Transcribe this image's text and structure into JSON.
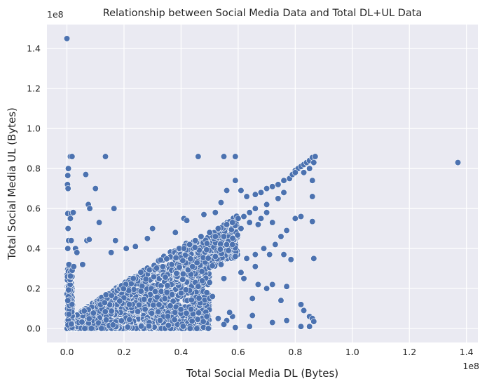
{
  "chart_data": {
    "type": "scatter",
    "title": "Relationship between Social Media Data and Total DL+UL Data",
    "xlabel": "Total Social Media DL (Bytes)",
    "ylabel": "Total Social Media UL (Bytes)",
    "x_offset_label": "1e8",
    "y_offset_label": "1e8",
    "xlim": [
      -0.07,
      1.44
    ],
    "ylim": [
      -0.07,
      1.52
    ],
    "x_ticks": [
      0.0,
      0.2,
      0.4,
      0.6,
      0.8,
      1.0,
      1.2,
      1.4
    ],
    "x_tick_labels": [
      "0.0",
      "0.2",
      "0.4",
      "0.6",
      "0.8",
      "1.0",
      "1.2",
      "1.4"
    ],
    "y_ticks": [
      0.0,
      0.2,
      0.4,
      0.6,
      0.8,
      1.0,
      1.2,
      1.4
    ],
    "y_tick_labels": [
      "0.0",
      "0.2",
      "0.4",
      "0.6",
      "0.8",
      "1.0",
      "1.2",
      "1.4"
    ],
    "grid": true,
    "colors": {
      "background": "#eaeaf2",
      "grid": "#ffffff",
      "point": "#4c72b0"
    },
    "series": [
      {
        "points": [
          [
            0.0,
            1.45
          ],
          [
            1.37,
            0.83
          ],
          [
            0.005,
            0.8
          ],
          [
            0.003,
            0.765
          ],
          [
            0.002,
            0.72
          ],
          [
            0.004,
            0.7
          ],
          [
            0.012,
            0.86
          ],
          [
            0.018,
            0.86
          ],
          [
            0.066,
            0.77
          ],
          [
            0.1,
            0.7
          ],
          [
            0.135,
            0.86
          ],
          [
            0.003,
            0.575
          ],
          [
            0.015,
            0.575
          ],
          [
            0.022,
            0.58
          ],
          [
            0.004,
            0.5
          ],
          [
            0.012,
            0.55
          ],
          [
            0.075,
            0.62
          ],
          [
            0.08,
            0.6
          ],
          [
            0.113,
            0.53
          ],
          [
            0.165,
            0.6
          ],
          [
            0.006,
            0.44
          ],
          [
            0.015,
            0.44
          ],
          [
            0.07,
            0.44
          ],
          [
            0.078,
            0.445
          ],
          [
            0.17,
            0.44
          ],
          [
            0.003,
            0.4
          ],
          [
            0.03,
            0.4
          ],
          [
            0.035,
            0.38
          ],
          [
            0.055,
            0.32
          ],
          [
            0.007,
            0.32
          ],
          [
            0.024,
            0.31
          ],
          [
            0.155,
            0.38
          ],
          [
            0.208,
            0.4
          ],
          [
            0.24,
            0.41
          ],
          [
            0.3,
            0.5
          ],
          [
            0.282,
            0.45
          ],
          [
            0.38,
            0.48
          ],
          [
            0.41,
            0.55
          ],
          [
            0.42,
            0.54
          ],
          [
            0.46,
            0.86
          ],
          [
            0.55,
            0.86
          ],
          [
            0.59,
            0.86
          ],
          [
            0.59,
            0.74
          ],
          [
            0.56,
            0.69
          ],
          [
            0.54,
            0.63
          ],
          [
            0.52,
            0.58
          ],
          [
            0.48,
            0.57
          ],
          [
            0.61,
            0.69
          ],
          [
            0.63,
            0.66
          ],
          [
            0.66,
            0.67
          ],
          [
            0.68,
            0.68
          ],
          [
            0.7,
            0.7
          ],
          [
            0.72,
            0.71
          ],
          [
            0.74,
            0.72
          ],
          [
            0.76,
            0.74
          ],
          [
            0.78,
            0.75
          ],
          [
            0.79,
            0.77
          ],
          [
            0.8,
            0.79
          ],
          [
            0.81,
            0.8
          ],
          [
            0.82,
            0.81
          ],
          [
            0.83,
            0.82
          ],
          [
            0.84,
            0.83
          ],
          [
            0.85,
            0.84
          ],
          [
            0.86,
            0.855
          ],
          [
            0.87,
            0.86
          ],
          [
            0.865,
            0.83
          ],
          [
            0.85,
            0.8
          ],
          [
            0.83,
            0.78
          ],
          [
            0.8,
            0.78
          ],
          [
            0.86,
            0.74
          ],
          [
            0.86,
            0.66
          ],
          [
            0.76,
            0.68
          ],
          [
            0.74,
            0.65
          ],
          [
            0.7,
            0.62
          ],
          [
            0.66,
            0.6
          ],
          [
            0.64,
            0.58
          ],
          [
            0.62,
            0.56
          ],
          [
            0.6,
            0.55
          ],
          [
            0.58,
            0.53
          ],
          [
            0.56,
            0.52
          ],
          [
            0.53,
            0.5
          ],
          [
            0.5,
            0.48
          ],
          [
            0.47,
            0.46
          ],
          [
            0.45,
            0.44
          ],
          [
            0.43,
            0.42
          ],
          [
            0.41,
            0.4
          ],
          [
            0.82,
            0.56
          ],
          [
            0.77,
            0.49
          ],
          [
            0.75,
            0.46
          ],
          [
            0.73,
            0.42
          ],
          [
            0.76,
            0.37
          ],
          [
            0.71,
            0.37
          ],
          [
            0.66,
            0.37
          ],
          [
            0.63,
            0.35
          ],
          [
            0.59,
            0.36
          ],
          [
            0.69,
            0.4
          ],
          [
            0.72,
            0.53
          ],
          [
            0.67,
            0.52
          ],
          [
            0.8,
            0.55
          ],
          [
            0.86,
            0.535
          ],
          [
            0.865,
            0.35
          ],
          [
            0.785,
            0.345
          ],
          [
            0.7,
            0.2
          ],
          [
            0.72,
            0.22
          ],
          [
            0.77,
            0.21
          ],
          [
            0.75,
            0.14
          ],
          [
            0.82,
            0.12
          ],
          [
            0.83,
            0.09
          ],
          [
            0.85,
            0.06
          ],
          [
            0.86,
            0.05
          ],
          [
            0.865,
            0.035
          ],
          [
            0.82,
            0.01
          ],
          [
            0.85,
            0.01
          ],
          [
            0.77,
            0.04
          ],
          [
            0.72,
            0.03
          ],
          [
            0.64,
            0.01
          ],
          [
            0.59,
            0.005
          ],
          [
            0.65,
            0.065
          ],
          [
            0.65,
            0.15
          ],
          [
            0.67,
            0.22
          ],
          [
            0.62,
            0.25
          ],
          [
            0.66,
            0.31
          ],
          [
            0.61,
            0.28
          ],
          [
            0.55,
            0.25
          ],
          [
            0.49,
            0.18
          ],
          [
            0.5,
            0.15
          ],
          [
            0.51,
            0.16
          ],
          [
            0.44,
            0.31
          ],
          [
            0.53,
            0.05
          ],
          [
            0.56,
            0.04
          ],
          [
            0.58,
            0.06
          ],
          [
            0.55,
            0.02
          ],
          [
            0.57,
            0.08
          ],
          [
            0.49,
            0.06
          ],
          [
            0.46,
            0.21
          ],
          [
            0.5,
            0.23
          ],
          [
            0.52,
            0.36
          ],
          [
            0.54,
            0.32
          ],
          [
            0.56,
            0.42
          ],
          [
            0.58,
            0.42
          ],
          [
            0.52,
            0.46
          ],
          [
            0.55,
            0.46
          ],
          [
            0.61,
            0.5
          ],
          [
            0.64,
            0.53
          ],
          [
            0.68,
            0.55
          ],
          [
            0.7,
            0.58
          ]
        ]
      }
    ]
  }
}
